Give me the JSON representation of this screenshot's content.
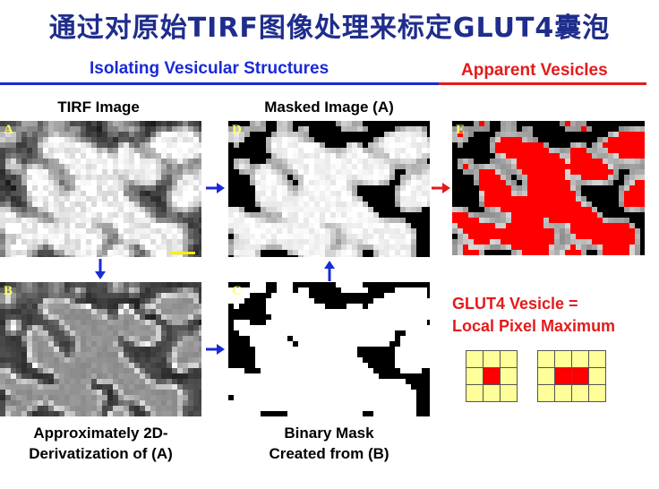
{
  "title": "通过对原始TIRF图像处理来标定GLUT4囊泡",
  "sections": {
    "left": "Isolating Vesicular Structures",
    "right": "Apparent Vesicles"
  },
  "captions": {
    "tirf": "TIRF Image",
    "masked": "Masked Image (A)",
    "deriv_line1": "Approximately 2D-",
    "deriv_line2": "Derivatization of (A)",
    "binary_line1": "Binary Mask",
    "binary_line2": "Created from (B)"
  },
  "panel_labels": {
    "A": "A",
    "B": "B",
    "C": "C",
    "D": "D",
    "E": "E"
  },
  "note": {
    "line1": "GLUT4 Vesicle =",
    "line2": "Local Pixel Maximum"
  },
  "colors": {
    "title": "#1f2d8c",
    "left_section": "#1a2ad6",
    "right_section": "#e31b1b",
    "arrow_blue": "#1a2ad6",
    "arrow_red": "#e31b1b",
    "cell_fill": "#ffff99",
    "cell_max": "#ff0000",
    "scalebar": "#ffee00"
  },
  "grids": {
    "single": {
      "cols": 3,
      "rows": 3,
      "max_cells": [
        4
      ]
    },
    "double": {
      "cols": 4,
      "rows": 3,
      "max_cells": [
        5,
        6
      ]
    }
  }
}
